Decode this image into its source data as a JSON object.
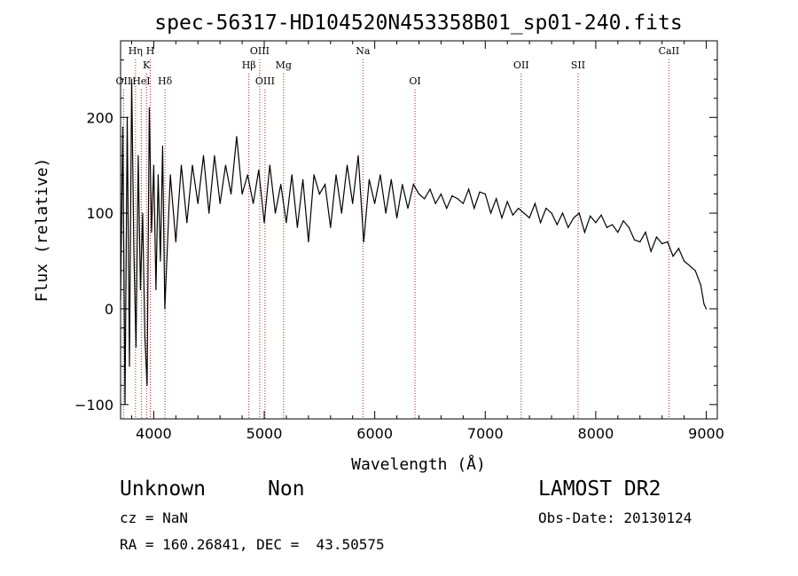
{
  "chart_data": {
    "type": "line",
    "title": "spec-56317-HD104520N453358B01_sp01-240.fits",
    "xlabel": "Wavelength (Å)",
    "ylabel": "Flux (relative)",
    "xlim": [
      3700,
      9100
    ],
    "ylim": [
      -115,
      280
    ],
    "xticks": [
      4000,
      5000,
      6000,
      7000,
      8000,
      9000
    ],
    "yticks": [
      -100,
      0,
      100,
      200
    ],
    "x_tick_labels": [
      "4000",
      "5000",
      "6000",
      "7000",
      "8000",
      "9000"
    ],
    "y_tick_labels": [
      "−100",
      "0",
      "100",
      "200"
    ],
    "grid": false,
    "line_color": "#000000",
    "marker_color": "#b22222",
    "spectrum": {
      "x": [
        3700,
        3720,
        3740,
        3760,
        3780,
        3800,
        3820,
        3840,
        3860,
        3880,
        3900,
        3920,
        3940,
        3960,
        3980,
        4000,
        4020,
        4040,
        4060,
        4080,
        4100,
        4150,
        4200,
        4250,
        4300,
        4350,
        4400,
        4450,
        4500,
        4550,
        4600,
        4650,
        4700,
        4750,
        4800,
        4850,
        4900,
        4950,
        5000,
        5050,
        5100,
        5150,
        5200,
        5250,
        5300,
        5350,
        5400,
        5450,
        5500,
        5550,
        5600,
        5650,
        5700,
        5750,
        5800,
        5850,
        5900,
        5950,
        6000,
        6050,
        6100,
        6150,
        6200,
        6250,
        6300,
        6350,
        6400,
        6450,
        6500,
        6550,
        6600,
        6650,
        6700,
        6750,
        6800,
        6850,
        6900,
        6950,
        7000,
        7050,
        7100,
        7150,
        7200,
        7250,
        7300,
        7350,
        7400,
        7450,
        7500,
        7550,
        7600,
        7650,
        7700,
        7750,
        7800,
        7850,
        7900,
        7950,
        8000,
        8050,
        8100,
        8150,
        8200,
        8250,
        8300,
        8350,
        8400,
        8450,
        8500,
        8550,
        8600,
        8650,
        8700,
        8750,
        8800,
        8850,
        8900,
        8950,
        8980,
        9000
      ],
      "y": [
        10,
        190,
        -100,
        200,
        -60,
        240,
        60,
        -40,
        160,
        20,
        100,
        -30,
        -80,
        210,
        80,
        150,
        20,
        140,
        50,
        170,
        0,
        140,
        70,
        150,
        90,
        150,
        110,
        160,
        100,
        160,
        110,
        150,
        120,
        180,
        120,
        140,
        110,
        145,
        90,
        150,
        100,
        130,
        90,
        140,
        85,
        135,
        70,
        140,
        120,
        130,
        85,
        140,
        100,
        150,
        110,
        160,
        70,
        135,
        110,
        140,
        100,
        135,
        95,
        130,
        105,
        130,
        120,
        115,
        125,
        110,
        120,
        105,
        118,
        115,
        110,
        125,
        105,
        122,
        120,
        100,
        115,
        95,
        112,
        98,
        105,
        100,
        95,
        110,
        90,
        105,
        100,
        88,
        100,
        85,
        95,
        100,
        80,
        97,
        90,
        98,
        85,
        88,
        80,
        92,
        85,
        72,
        70,
        80,
        60,
        75,
        68,
        70,
        55,
        63,
        50,
        45,
        40,
        25,
        5,
        0
      ]
    },
    "lines": [
      {
        "label": "Hη",
        "x": 3835,
        "row": 0
      },
      {
        "label": "OII",
        "x": 3727,
        "row": 2
      },
      {
        "label": "HeI",
        "x": 3888,
        "row": 2
      },
      {
        "label": "K",
        "x": 3934,
        "row": 1
      },
      {
        "label": "H",
        "x": 3969,
        "row": 0
      },
      {
        "label": "Hδ",
        "x": 4102,
        "row": 2
      },
      {
        "label": "Hβ",
        "x": 4861,
        "row": 1
      },
      {
        "label": "OIII",
        "x": 4959,
        "row": 0
      },
      {
        "label": "OIII",
        "x": 5007,
        "row": 2
      },
      {
        "label": "Mg",
        "x": 5175,
        "row": 1
      },
      {
        "label": "Na",
        "x": 5893,
        "row": 0
      },
      {
        "label": "OI",
        "x": 6364,
        "row": 2
      },
      {
        "label": "OII",
        "x": 7325,
        "row": 1
      },
      {
        "label": "SII",
        "x": 7840,
        "row": 1
      },
      {
        "label": "CaII",
        "x": 8662,
        "row": 0
      }
    ]
  },
  "info": {
    "class": "Unknown",
    "subclass": "Non",
    "survey": "LAMOST DR2",
    "cz": "cz = NaN",
    "obs_date": "Obs-Date: 20130124",
    "coords": "RA = 160.26841, DEC =  43.50575"
  }
}
